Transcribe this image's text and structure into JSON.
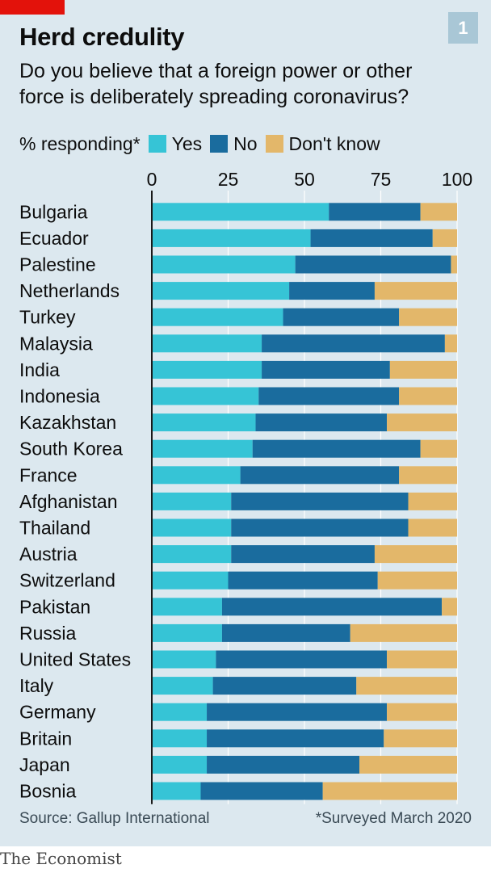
{
  "title": "Herd credulity",
  "subtitle": "Do you believe that a foreign power or other force is deliberately spreading coronavirus?",
  "chart_number": "1",
  "legend": {
    "prefix": "% responding*",
    "items": [
      {
        "label": "Yes",
        "color": "#36c4d6"
      },
      {
        "label": "No",
        "color": "#1a6c9e"
      },
      {
        "label": "Don't know",
        "color": "#e3b76a"
      }
    ]
  },
  "chart_data": {
    "type": "bar",
    "orientation": "horizontal",
    "stacked": true,
    "x_ticks": [
      0,
      25,
      50,
      75,
      100
    ],
    "xlim": [
      0,
      100
    ],
    "categories": [
      "Bulgaria",
      "Ecuador",
      "Palestine",
      "Netherlands",
      "Turkey",
      "Malaysia",
      "India",
      "Indonesia",
      "Kazakhstan",
      "South Korea",
      "France",
      "Afghanistan",
      "Thailand",
      "Austria",
      "Switzerland",
      "Pakistan",
      "Russia",
      "United States",
      "Italy",
      "Germany",
      "Britain",
      "Japan",
      "Bosnia"
    ],
    "series": [
      {
        "name": "Yes",
        "color": "#36c4d6",
        "values": [
          58,
          52,
          47,
          45,
          43,
          36,
          36,
          35,
          34,
          33,
          29,
          26,
          26,
          26,
          25,
          23,
          23,
          21,
          20,
          18,
          18,
          18,
          16
        ]
      },
      {
        "name": "No",
        "color": "#1a6c9e",
        "values": [
          30,
          40,
          51,
          28,
          38,
          60,
          42,
          46,
          43,
          55,
          52,
          58,
          58,
          47,
          49,
          72,
          42,
          56,
          47,
          59,
          58,
          50,
          40
        ]
      },
      {
        "name": "Don't know",
        "color": "#e3b76a",
        "values": [
          12,
          8,
          2,
          27,
          19,
          4,
          22,
          19,
          23,
          12,
          19,
          16,
          16,
          27,
          26,
          5,
          35,
          23,
          33,
          23,
          24,
          32,
          44
        ]
      }
    ]
  },
  "source": "Source: Gallup International",
  "note": "*Surveyed March 2020",
  "brand": "The Economist"
}
